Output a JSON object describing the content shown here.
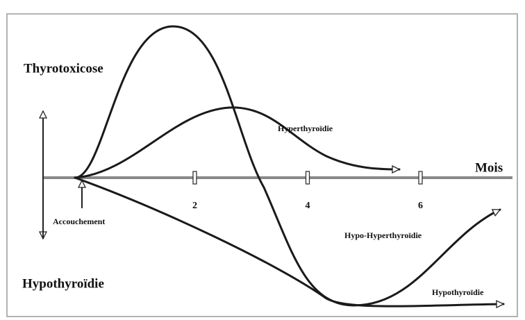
{
  "diagram": {
    "labels": {
      "thyrotoxicose": "Thyrotoxicose",
      "hypothyroidie_axis": "Hypothyroïdie",
      "axis": "Mois",
      "accouchement": "Accouchement",
      "hyperthyroidie": "Hyperthyroïdie",
      "hypo_hyper": "Hypo-Hyperthyroïdie",
      "hypothyroidie_curve": "Hypothyroïdie"
    },
    "xticks": [
      2,
      4,
      6
    ]
  }
}
